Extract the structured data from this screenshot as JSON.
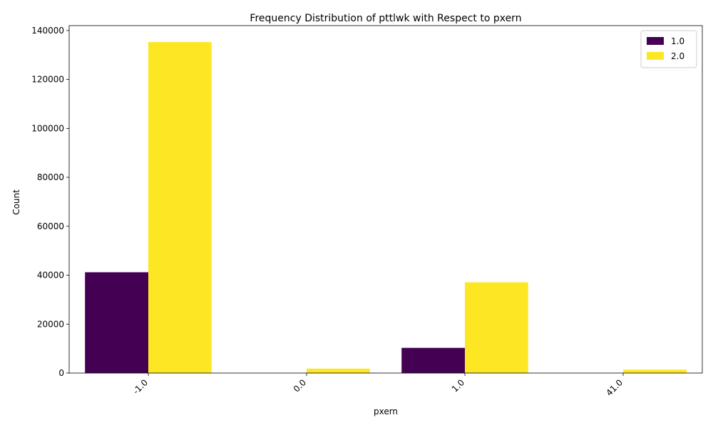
{
  "chart_data": {
    "type": "bar",
    "title": "Frequency Distribution of pttlwk with Respect to pxern",
    "xlabel": "pxern",
    "ylabel": "Count",
    "categories": [
      "-1.0",
      "0.0",
      "1.0",
      "41.0"
    ],
    "series": [
      {
        "name": "1.0",
        "color": "#440154",
        "values": [
          41200,
          0,
          10300,
          0
        ]
      },
      {
        "name": "2.0",
        "color": "#fde725",
        "values": [
          135300,
          1800,
          37100,
          1400
        ]
      }
    ],
    "ylim": [
      0,
      142000
    ],
    "yticks": [
      0,
      20000,
      40000,
      60000,
      80000,
      100000,
      120000,
      140000
    ],
    "legend_position": "top-right",
    "grid": false
  }
}
